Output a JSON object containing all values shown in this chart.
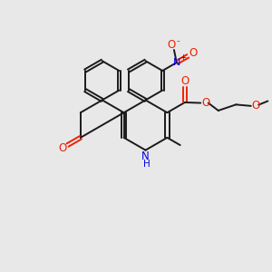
{
  "bg_color": "#e8e8e8",
  "bond_color": "#1a1a1a",
  "n_color": "#0000ee",
  "o_color": "#ee2200",
  "lw": 1.4,
  "figsize": [
    3.0,
    3.0
  ],
  "dpi": 100,
  "xlim": [
    0,
    10
  ],
  "ylim": [
    0,
    10
  ]
}
